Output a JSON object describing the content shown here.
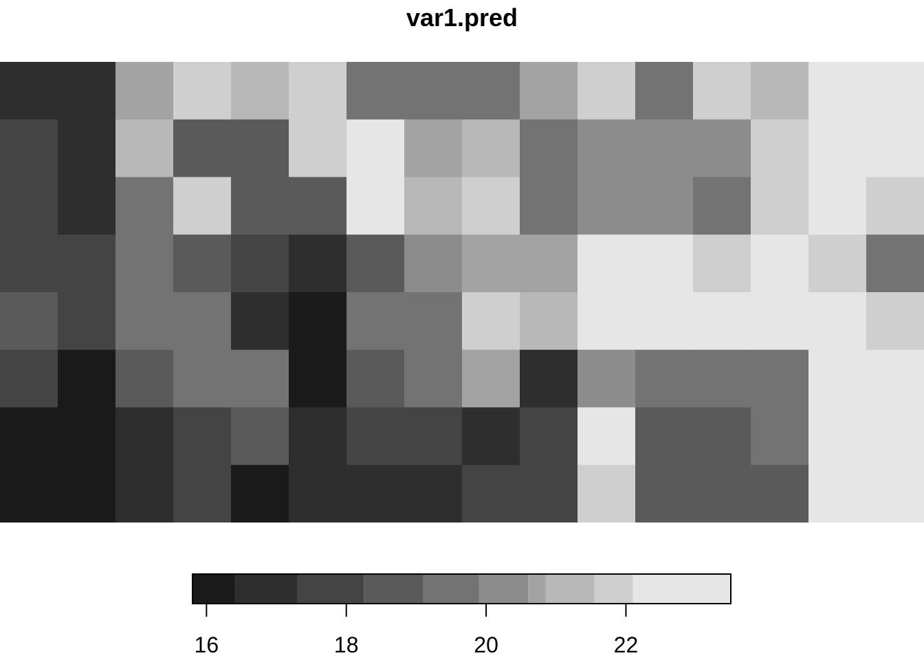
{
  "chart_data": {
    "type": "heatmap",
    "title": "var1.pred",
    "xlabel": "",
    "ylabel": "",
    "color_scale": "grayscale",
    "color_breaks": [
      15.8,
      16.4,
      17.3,
      18.25,
      19.1,
      19.9,
      20.6,
      20.85,
      21.55,
      22.1,
      23.5
    ],
    "colors": [
      "#1a1a1a",
      "#2e2e2e",
      "#444444",
      "#5a5a5a",
      "#737373",
      "#8c8c8c",
      "#a3a3a3",
      "#b8b8b8",
      "#cfcfcf",
      "#e6e6e6"
    ],
    "legend_ticks": [
      16,
      18,
      20,
      22
    ],
    "legend_tick_labels": [
      "16",
      "18",
      "20",
      "22"
    ],
    "legend_placement": "bottom",
    "grid": false,
    "cells_cols": 16,
    "cells_rows": 8,
    "values": [
      [
        16.9,
        16.9,
        20.8,
        21.8,
        21.2,
        22.0,
        19.8,
        19.3,
        19.8,
        20.6,
        21.6,
        19.4,
        21.6,
        21.4,
        22.5,
        22.9
      ],
      [
        17.8,
        16.5,
        20.9,
        18.7,
        18.8,
        22.0,
        23.1,
        20.8,
        20.9,
        19.8,
        20.5,
        19.9,
        20.2,
        21.8,
        22.6,
        22.4
      ],
      [
        18.0,
        16.6,
        19.8,
        21.6,
        18.6,
        18.9,
        23.0,
        21.0,
        21.6,
        19.7,
        20.5,
        20.3,
        19.7,
        21.8,
        22.5,
        21.8
      ],
      [
        18.2,
        18.1,
        19.8,
        18.7,
        17.6,
        17.2,
        18.4,
        20.5,
        20.6,
        20.6,
        22.9,
        22.7,
        21.9,
        22.9,
        21.8,
        19.8
      ],
      [
        18.8,
        18.1,
        19.5,
        19.6,
        16.5,
        15.9,
        19.4,
        19.8,
        21.6,
        21.0,
        22.4,
        22.6,
        22.7,
        22.4,
        22.6,
        22.0
      ],
      [
        17.6,
        15.9,
        18.3,
        19.5,
        19.1,
        16.1,
        19.0,
        19.4,
        20.6,
        17.0,
        20.4,
        19.7,
        19.6,
        19.6,
        22.9,
        22.8
      ],
      [
        16.0,
        15.9,
        16.5,
        17.3,
        18.6,
        16.4,
        18.0,
        17.3,
        17.2,
        17.9,
        22.2,
        18.8,
        18.6,
        19.1,
        23.0,
        23.0
      ],
      [
        15.9,
        15.9,
        16.6,
        17.3,
        16.2,
        16.5,
        16.9,
        16.8,
        17.8,
        17.6,
        22.0,
        18.9,
        18.8,
        18.8,
        23.2,
        23.2
      ]
    ]
  }
}
